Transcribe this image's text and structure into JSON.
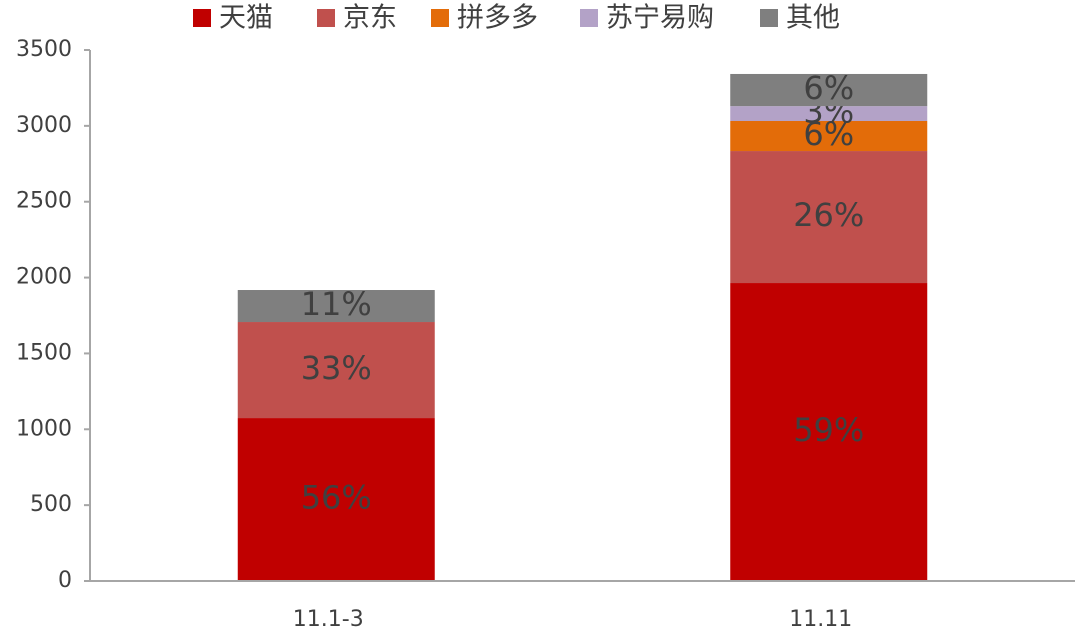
{
  "chart_data": {
    "type": "stacked_bar",
    "categories": [
      "11.1-3",
      "11.11"
    ],
    "series": [
      {
        "name": "天猫",
        "color": "#c00000",
        "values": [
          1074,
          1964
        ],
        "segment_labels": [
          "56%",
          "59%"
        ]
      },
      {
        "name": "京东",
        "color": "#c0504d",
        "values": [
          633,
          870
        ],
        "segment_labels": [
          "33%",
          "26%"
        ]
      },
      {
        "name": "拼多多",
        "color": "#e36c09",
        "values": [
          0,
          198
        ],
        "segment_labels": [
          null,
          "6%"
        ]
      },
      {
        "name": "苏宁易购",
        "color": "#b3a2c7",
        "values": [
          0,
          98
        ],
        "segment_labels": [
          null,
          "3%"
        ]
      },
      {
        "name": "其他",
        "color": "#7f7f7f",
        "values": [
          211,
          212
        ],
        "segment_labels": [
          "11%",
          "6%"
        ]
      }
    ],
    "ylim": [
      0,
      3500
    ],
    "yticks": [
      0,
      500,
      1000,
      1500,
      2000,
      2500,
      3000,
      3500
    ],
    "legend": "top"
  }
}
